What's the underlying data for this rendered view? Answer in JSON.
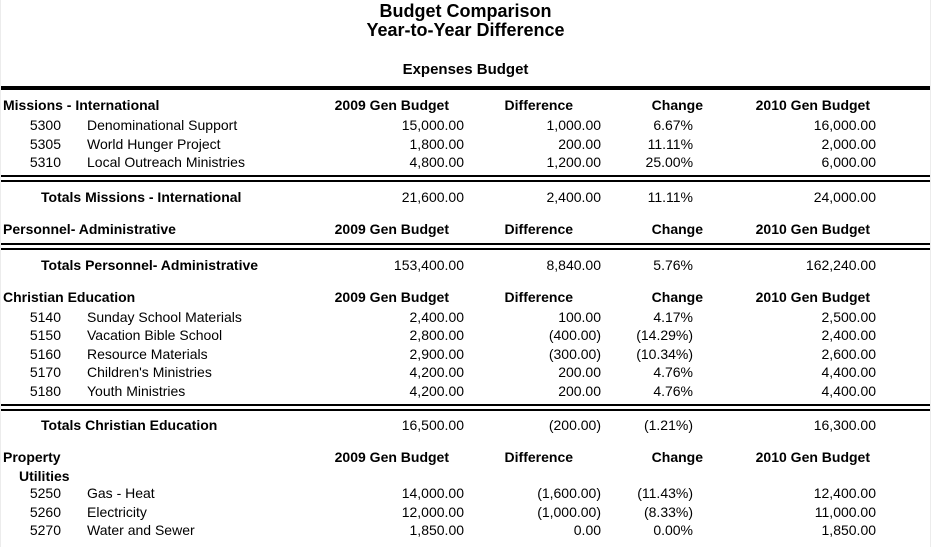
{
  "page": {
    "title_line1": "Budget Comparison",
    "title_line2": "Year-to-Year Difference",
    "subtitle": "Expenses Budget"
  },
  "colors": {
    "text": "#000000",
    "background": "#ffffff",
    "rule": "#000000"
  },
  "columns": {
    "budget2009": "2009 Gen Budget",
    "difference": "Difference",
    "change": "Change",
    "budget2010": "2010 Gen Budget"
  },
  "sections": [
    {
      "name": "Missions - International",
      "subname": "",
      "rows": [
        {
          "account": "5300",
          "description": "Denominational Support",
          "budget2009": "15,000.00",
          "difference": "1,000.00",
          "change": "6.67%",
          "budget2010": "16,000.00"
        },
        {
          "account": "5305",
          "description": "World Hunger Project",
          "budget2009": "1,800.00",
          "difference": "200.00",
          "change": "11.11%",
          "budget2010": "2,000.00"
        },
        {
          "account": "5310",
          "description": "Local Outreach Ministries",
          "budget2009": "4,800.00",
          "difference": "1,200.00",
          "change": "25.00%",
          "budget2010": "6,000.00"
        }
      ],
      "totals": {
        "label": "Totals Missions - International",
        "budget2009": "21,600.00",
        "difference": "2,400.00",
        "change": "11.11%",
        "budget2010": "24,000.00"
      }
    },
    {
      "name": "Personnel- Administrative",
      "subname": "",
      "rows": [],
      "totals": {
        "label": "Totals Personnel- Administrative",
        "budget2009": "153,400.00",
        "difference": "8,840.00",
        "change": "5.76%",
        "budget2010": "162,240.00"
      }
    },
    {
      "name": "Christian Education",
      "subname": "",
      "rows": [
        {
          "account": "5140",
          "description": "Sunday School Materials",
          "budget2009": "2,400.00",
          "difference": "100.00",
          "change": "4.17%",
          "budget2010": "2,500.00"
        },
        {
          "account": "5150",
          "description": "Vacation Bible School",
          "budget2009": "2,800.00",
          "difference": "(400.00)",
          "change": "(14.29%)",
          "budget2010": "2,400.00"
        },
        {
          "account": "5160",
          "description": "Resource Materials",
          "budget2009": "2,900.00",
          "difference": "(300.00)",
          "change": "(10.34%)",
          "budget2010": "2,600.00"
        },
        {
          "account": "5170",
          "description": "Children's Ministries",
          "budget2009": "4,200.00",
          "difference": "200.00",
          "change": "4.76%",
          "budget2010": "4,400.00"
        },
        {
          "account": "5180",
          "description": "Youth Ministries",
          "budget2009": "4,200.00",
          "difference": "200.00",
          "change": "4.76%",
          "budget2010": "4,400.00"
        }
      ],
      "totals": {
        "label": "Totals Christian Education",
        "budget2009": "16,500.00",
        "difference": "(200.00)",
        "change": "(1.21%)",
        "budget2010": "16,300.00"
      }
    },
    {
      "name": "Property",
      "subname": "Utilities",
      "rows": [
        {
          "account": "5250",
          "description": "Gas - Heat",
          "budget2009": "14,000.00",
          "difference": "(1,600.00)",
          "change": "(11.43%)",
          "budget2010": "12,400.00"
        },
        {
          "account": "5260",
          "description": "Electricity",
          "budget2009": "12,000.00",
          "difference": "(1,000.00)",
          "change": "(8.33%)",
          "budget2010": "11,000.00"
        },
        {
          "account": "5270",
          "description": "Water and Sewer",
          "budget2009": "1,850.00",
          "difference": "0.00",
          "change": "0.00%",
          "budget2010": "1,850.00"
        }
      ],
      "totals": null
    }
  ]
}
